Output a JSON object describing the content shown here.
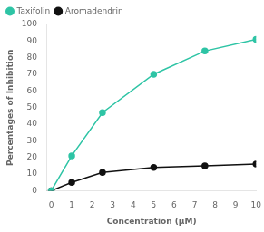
{
  "chart_data": {
    "type": "line",
    "x": [
      0,
      1,
      2.5,
      5,
      7.5,
      10
    ],
    "series": [
      {
        "name": "Taxifolin",
        "color": "#2ec4a5",
        "values": [
          0,
          21,
          47,
          70,
          84,
          91
        ],
        "marker": "circle",
        "line_style": "solid"
      },
      {
        "name": "Aromadendrin",
        "color": "#111111",
        "values": [
          0,
          5,
          11,
          14,
          15,
          16
        ],
        "marker": "circle",
        "line_style": "solid"
      }
    ],
    "xlabel": "Concentration (μM)",
    "ylabel": "Percentages of Inhibition",
    "xlim": [
      -0.2,
      10
    ],
    "ylim": [
      0,
      100
    ],
    "xticks": [
      0,
      1,
      2,
      3,
      4,
      5,
      6,
      7,
      8,
      9,
      10
    ],
    "yticks": [
      0,
      10,
      20,
      30,
      40,
      50,
      60,
      70,
      80,
      90,
      100
    ],
    "grid": false,
    "legend": "upper left"
  }
}
